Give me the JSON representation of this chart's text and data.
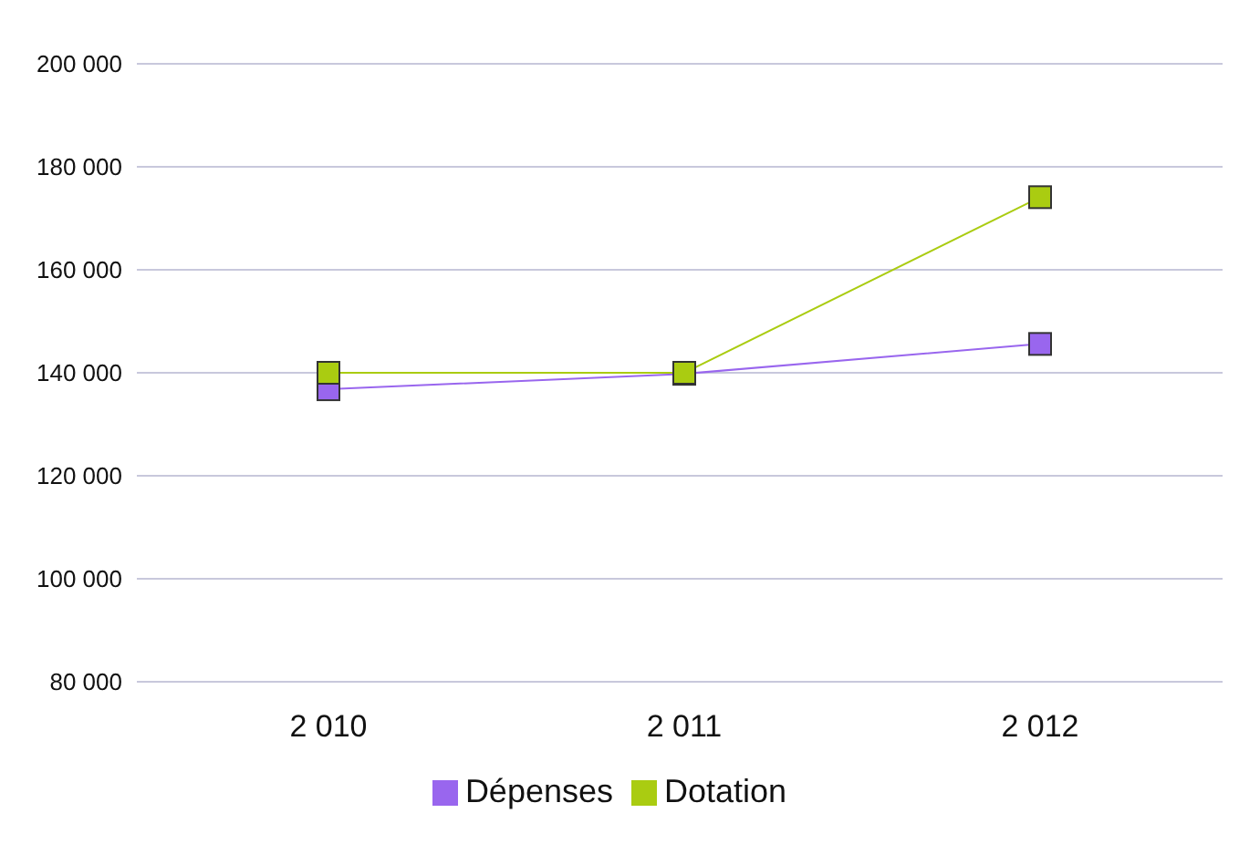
{
  "chart_data": {
    "type": "line",
    "categories": [
      "2 010",
      "2 011",
      "2 012"
    ],
    "series": [
      {
        "name": "Dépenses",
        "color": "#9966ee",
        "values": [
          136800,
          139800,
          145600
        ]
      },
      {
        "name": "Dotation",
        "color": "#aacc11",
        "values": [
          140000,
          140000,
          174100
        ]
      }
    ],
    "ylim": [
      80000,
      200000
    ],
    "yticks": [
      {
        "value": 80000,
        "label": "80 000"
      },
      {
        "value": 100000,
        "label": "100 000"
      },
      {
        "value": 120000,
        "label": "120 000"
      },
      {
        "value": 140000,
        "label": "140 000"
      },
      {
        "value": 160000,
        "label": "160 000"
      },
      {
        "value": 180000,
        "label": "180 000"
      },
      {
        "value": 200000,
        "label": "200 000"
      }
    ],
    "grid": "y",
    "legend": "bottom",
    "marker": "square",
    "line_style": "solid"
  }
}
